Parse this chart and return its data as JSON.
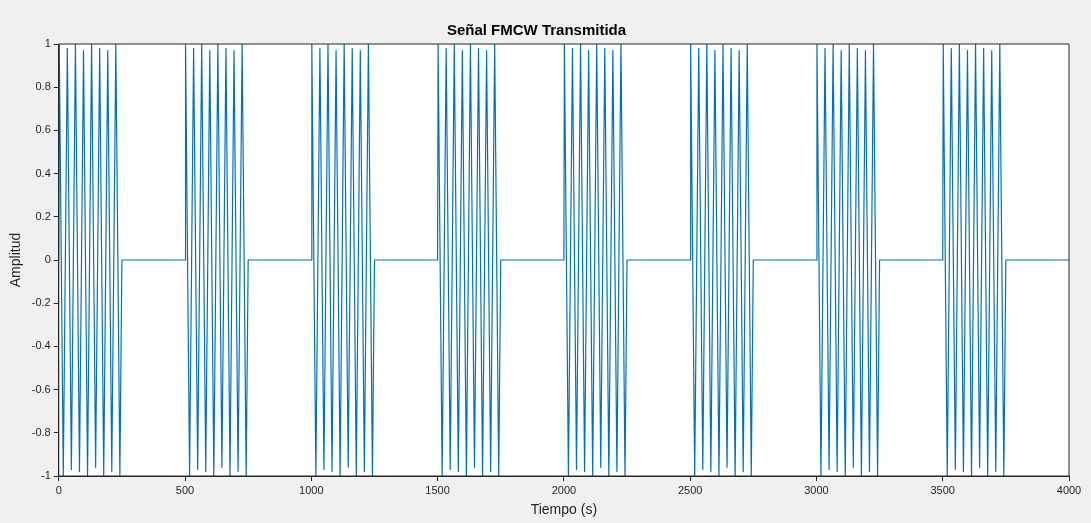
{
  "chart_data": {
    "type": "line",
    "title": "Señal FMCW Transmitida",
    "xlabel": "Tiempo (s)",
    "ylabel": "Amplitud",
    "grid": false,
    "legend": false,
    "xlim": [
      0,
      4000
    ],
    "xticks": [
      0,
      500,
      1000,
      1500,
      2000,
      2500,
      3000,
      3500,
      4000
    ],
    "ylim": [
      -1,
      1
    ],
    "yticks": [
      -1,
      -0.8,
      -0.6,
      -0.4,
      -0.2,
      0,
      0.2,
      0.4,
      0.6,
      0.8,
      1
    ],
    "series": [
      {
        "color": "#0072bd",
        "x": [
          0,
          2,
          18,
          34,
          50,
          66,
          82,
          98,
          114,
          130,
          146,
          162,
          178,
          194,
          210,
          226,
          242,
          250,
          500,
          502,
          518,
          534,
          550,
          566,
          582,
          598,
          614,
          630,
          646,
          662,
          678,
          694,
          710,
          726,
          742,
          750,
          1000,
          1002,
          1018,
          1034,
          1050,
          1066,
          1082,
          1098,
          1114,
          1130,
          1146,
          1162,
          1178,
          1194,
          1210,
          1226,
          1242,
          1250,
          1500,
          1502,
          1518,
          1534,
          1550,
          1566,
          1582,
          1598,
          1614,
          1630,
          1646,
          1662,
          1678,
          1694,
          1710,
          1726,
          1742,
          1750,
          2000,
          2002,
          2018,
          2034,
          2050,
          2066,
          2082,
          2098,
          2114,
          2130,
          2146,
          2162,
          2178,
          2194,
          2210,
          2226,
          2242,
          2250,
          2500,
          2502,
          2518,
          2534,
          2550,
          2566,
          2582,
          2598,
          2614,
          2630,
          2646,
          2662,
          2678,
          2694,
          2710,
          2726,
          2742,
          2750,
          3000,
          3002,
          3018,
          3034,
          3050,
          3066,
          3082,
          3098,
          3114,
          3130,
          3146,
          3162,
          3178,
          3194,
          3210,
          3226,
          3242,
          3250,
          3500,
          3502,
          3518,
          3534,
          3550,
          3566,
          3582,
          3598,
          3614,
          3630,
          3646,
          3662,
          3678,
          3694,
          3710,
          3726,
          3742,
          3750,
          4000
        ],
        "values": [
          0,
          1,
          -1,
          0.98,
          -0.97,
          1,
          -0.98,
          0.97,
          -1,
          1,
          -0.96,
          0.98,
          -1,
          0.97,
          -0.98,
          1,
          -1,
          0,
          0,
          1,
          -1,
          0.98,
          -0.97,
          1,
          -0.98,
          0.97,
          -1,
          1,
          -0.96,
          0.98,
          -1,
          0.97,
          -0.98,
          1,
          -1,
          0,
          0,
          1,
          -1,
          0.98,
          -0.97,
          1,
          -0.98,
          0.97,
          -1,
          1,
          -0.96,
          0.98,
          -1,
          0.97,
          -0.98,
          1,
          -1,
          0,
          0,
          1,
          -1,
          0.98,
          -0.97,
          1,
          -0.98,
          0.97,
          -1,
          1,
          -0.96,
          0.98,
          -1,
          0.97,
          -0.98,
          1,
          -1,
          0,
          0,
          1,
          -1,
          0.98,
          -0.97,
          1,
          -0.98,
          0.97,
          -1,
          1,
          -0.96,
          0.98,
          -1,
          0.97,
          -0.98,
          1,
          -1,
          0,
          0,
          1,
          -1,
          0.98,
          -0.97,
          1,
          -0.98,
          0.97,
          -1,
          1,
          -0.96,
          0.98,
          -1,
          0.97,
          -0.98,
          1,
          -1,
          0,
          0,
          1,
          -1,
          0.98,
          -0.97,
          1,
          -0.98,
          0.97,
          -1,
          1,
          -0.96,
          0.98,
          -1,
          0.97,
          -0.98,
          1,
          -1,
          0,
          0,
          1,
          -1,
          0.98,
          -0.97,
          1,
          -0.98,
          0.97,
          -1,
          1,
          -0.96,
          0.98,
          -1,
          0.97,
          -0.98,
          1,
          -1,
          0,
          0
        ]
      }
    ]
  }
}
